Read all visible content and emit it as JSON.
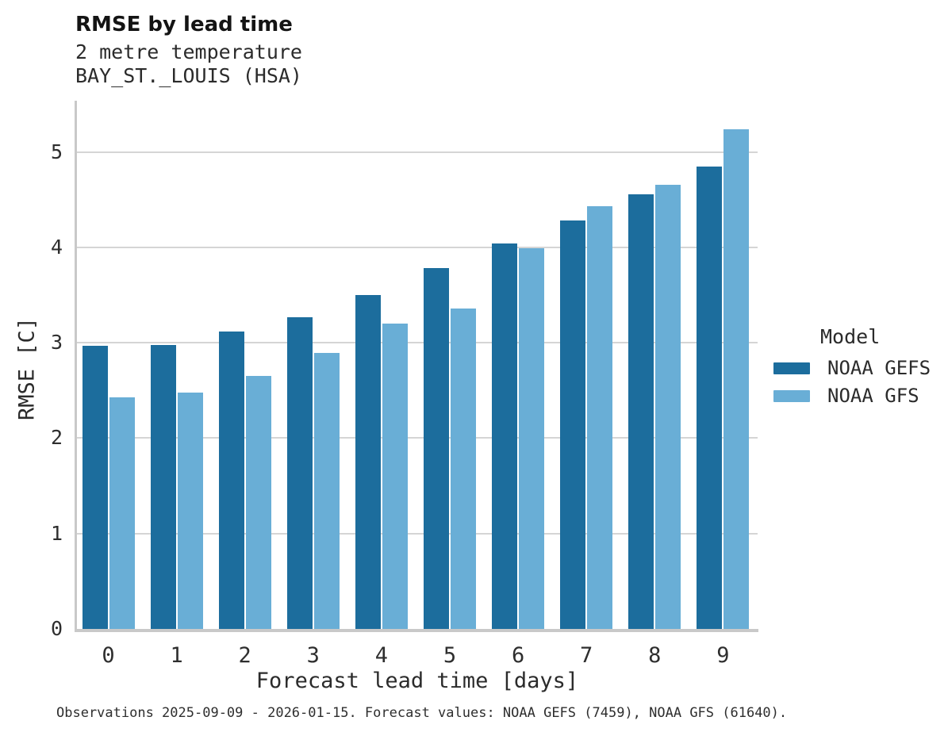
{
  "title": "RMSE by lead time",
  "subtitle_line1": "2 metre temperature",
  "subtitle_line2": "BAY_ST._LOUIS (HSA)",
  "footer": "Observations 2025-09-09 - 2026-01-15. Forecast values: NOAA GEFS (7459), NOAA GFS (61640).",
  "legend": {
    "title": "Model",
    "items": [
      {
        "label": "NOAA GEFS",
        "color": "#1c6d9d"
      },
      {
        "label": "NOAA GFS",
        "color": "#69aed6"
      }
    ]
  },
  "chart_data": {
    "type": "bar",
    "title": "RMSE by lead time",
    "subtitle": [
      "2 metre temperature",
      "BAY_ST._LOUIS (HSA)"
    ],
    "xlabel": "Forecast lead time [days]",
    "ylabel": "RMSE [C]",
    "categories": [
      0,
      1,
      2,
      3,
      4,
      5,
      6,
      7,
      8,
      9
    ],
    "series": [
      {
        "name": "NOAA GEFS",
        "color": "#1c6d9d",
        "values": [
          2.97,
          2.98,
          3.12,
          3.27,
          3.5,
          3.78,
          4.04,
          4.28,
          4.56,
          4.85
        ]
      },
      {
        "name": "NOAA GFS",
        "color": "#69aed6",
        "values": [
          2.43,
          2.48,
          2.65,
          2.89,
          3.2,
          3.36,
          3.99,
          4.43,
          4.66,
          5.24
        ]
      }
    ],
    "ylim": [
      0,
      5.53
    ],
    "yticks": [
      0,
      1,
      2,
      3,
      4,
      5
    ],
    "grid": true,
    "legend_position": "right",
    "caption": "Observations 2025-09-09 - 2026-01-15. Forecast values: NOAA GEFS (7459), NOAA GFS (61640)."
  },
  "colors": {
    "series_dark": "#1c6d9d",
    "series_light": "#69aed6",
    "gridline": "#d5d5d5",
    "axis_line": "#c9c9c9",
    "text": "#2b2b2b"
  }
}
